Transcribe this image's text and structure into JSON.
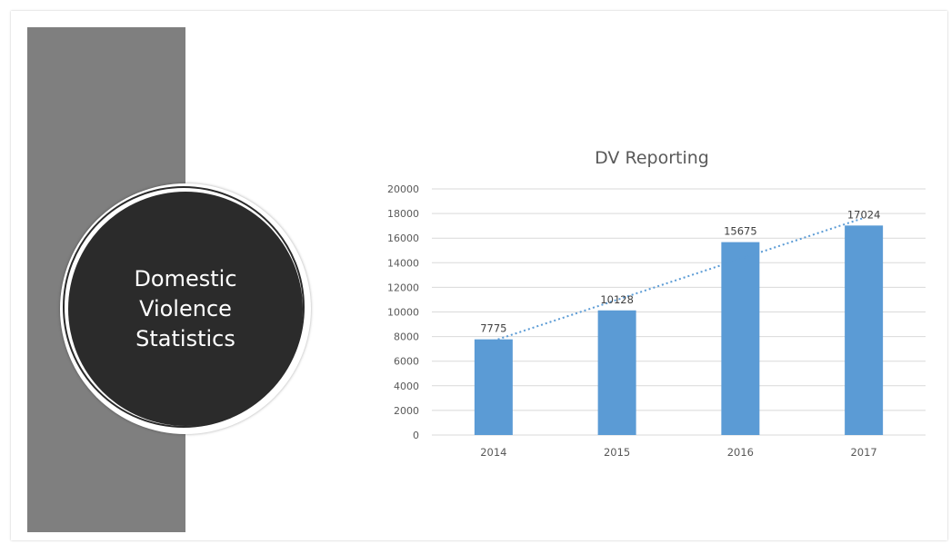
{
  "slide": {
    "title_lines": [
      "Domestic",
      "Violence",
      "Statistics"
    ]
  },
  "colors": {
    "sidebar": "#7f7f7f",
    "circle": "#2b2b2b",
    "bar": "#5b9bd5",
    "trendline": "#5b9bd5",
    "gridline": "#d9d9d9",
    "text": "#595959"
  },
  "chart_data": {
    "type": "bar",
    "title": "DV Reporting",
    "categories": [
      "2014",
      "2015",
      "2016",
      "2017"
    ],
    "values": [
      7775,
      10128,
      15675,
      17024
    ],
    "data_labels": [
      "7775",
      "10128",
      "15675",
      "17024"
    ],
    "ylim": [
      0,
      20000
    ],
    "yticks": [
      0,
      2000,
      4000,
      6000,
      8000,
      10000,
      12000,
      14000,
      16000,
      18000,
      20000
    ],
    "grid": true,
    "trendline": "linear dotted",
    "legend": "none"
  }
}
